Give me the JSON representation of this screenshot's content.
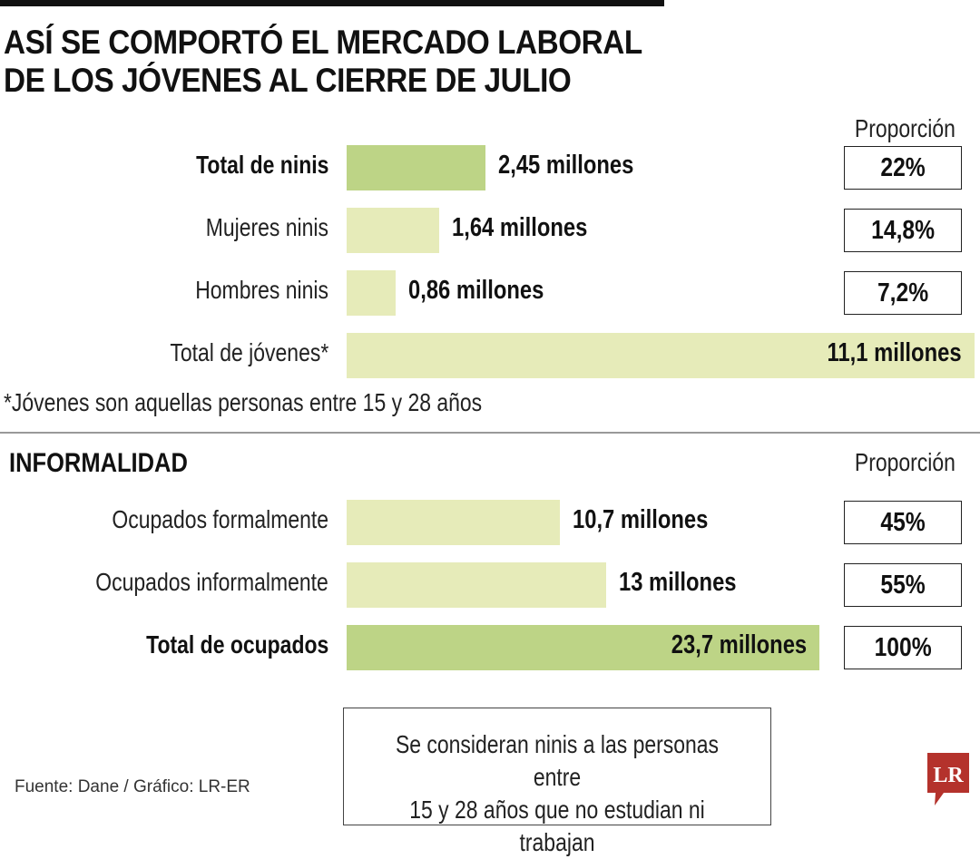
{
  "title_lines": [
    "ASÍ SE COMPORTÓ EL MERCADO LABORAL",
    "DE LOS JÓVENES AL CIERRE DE JULIO"
  ],
  "proportion_header": "Proporción",
  "section1": {
    "rows": [
      {
        "label": "Total de ninis",
        "value_text": "2,45 millones",
        "value": 2.45,
        "proportion": "22%",
        "emphasis": true
      },
      {
        "label": "Mujeres ninis",
        "value_text": "1,64 millones",
        "value": 1.64,
        "proportion": "14,8%",
        "emphasis": false
      },
      {
        "label": "Hombres ninis",
        "value_text": "0,86 millones",
        "value": 0.86,
        "proportion": "7,2%",
        "emphasis": false
      },
      {
        "label": "Total de jóvenes*",
        "value_text": "11,1 millones",
        "value": 11.1,
        "proportion": null,
        "emphasis": false
      }
    ],
    "footnote": "*Jóvenes son aquellas personas entre 15 y 28 años"
  },
  "section2": {
    "heading": "INFORMALIDAD",
    "rows": [
      {
        "label": "Ocupados formalmente",
        "value_text": "10,7 millones",
        "value": 10.7,
        "proportion": "45%",
        "emphasis": false
      },
      {
        "label": "Ocupados informalmente",
        "value_text": "13 millones",
        "value": 13,
        "proportion": "55%",
        "emphasis": false
      },
      {
        "label": "Total de ocupados",
        "value_text": "23,7 millones",
        "value": 23.7,
        "proportion": "100%",
        "emphasis": true
      }
    ]
  },
  "note_lines": [
    "Se consideran ninis a las personas entre",
    "15 y 28 años que no estudian ni trabajan"
  ],
  "source": "Fuente: Dane / Gráfico: LR-ER",
  "logo_text": "LR",
  "colors": {
    "bar_light": "#e6ebb9",
    "bar_dark": "#bdd486",
    "logo": "#b4322c"
  },
  "chart_data": [
    {
      "type": "bar",
      "categories": [
        "Total de ninis",
        "Mujeres ninis",
        "Hombres ninis",
        "Total de jóvenes*"
      ],
      "values": [
        2.45,
        1.64,
        0.86,
        11.1
      ],
      "proportions": [
        "22%",
        "14,8%",
        "7,2%",
        null
      ]
    },
    {
      "type": "bar",
      "title": "INFORMALIDAD",
      "categories": [
        "Ocupados formalmente",
        "Ocupados informalmente",
        "Total de ocupados"
      ],
      "values": [
        10.7,
        13,
        23.7
      ],
      "proportions": [
        "45%",
        "55%",
        "100%"
      ]
    }
  ]
}
